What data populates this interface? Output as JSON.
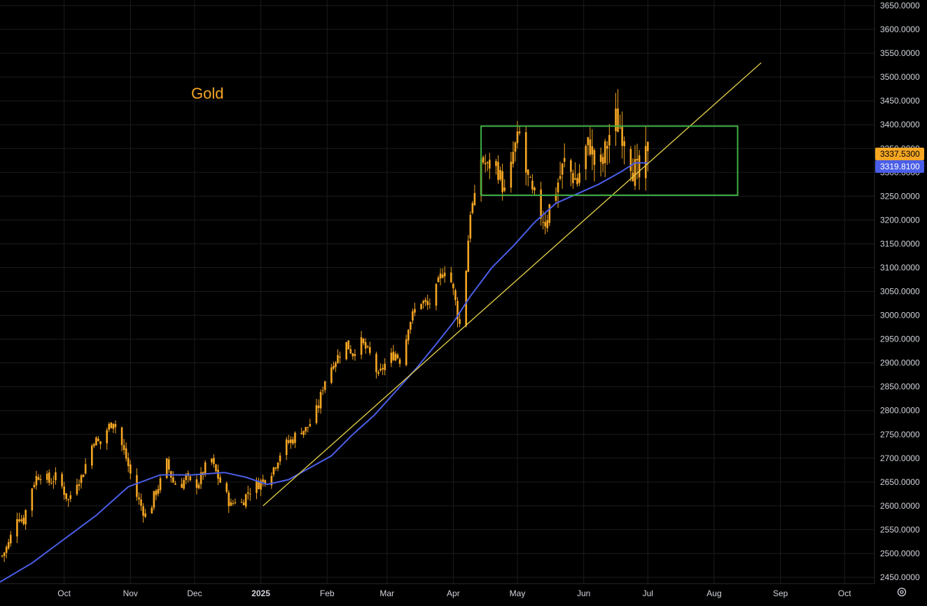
{
  "chart_data": {
    "type": "candlestick",
    "title": "Gold",
    "ylim": [
      2440,
      3660
    ],
    "y_ticks": [
      "3650.0000",
      "3600.0000",
      "3550.0000",
      "3500.0000",
      "3450.0000",
      "3400.0000",
      "3350.0000",
      "3300.0000",
      "3250.0000",
      "3200.0000",
      "3150.0000",
      "3100.0000",
      "3050.0000",
      "3000.0000",
      "2950.0000",
      "2900.0000",
      "2850.0000",
      "2800.0000",
      "2750.0000",
      "2700.0000",
      "2650.0000",
      "2600.0000",
      "2550.0000",
      "2500.0000",
      "2450.0000"
    ],
    "x_ticks": [
      {
        "label": "Oct",
        "day": 30,
        "bold": false
      },
      {
        "label": "Nov",
        "day": 61,
        "bold": false
      },
      {
        "label": "Dec",
        "day": 91,
        "bold": false
      },
      {
        "label": "2025",
        "day": 122,
        "bold": true
      },
      {
        "label": "Feb",
        "day": 153,
        "bold": false
      },
      {
        "label": "Mar",
        "day": 181,
        "bold": false
      },
      {
        "label": "Apr",
        "day": 212,
        "bold": false
      },
      {
        "label": "May",
        "day": 242,
        "bold": false
      },
      {
        "label": "Jun",
        "day": 273,
        "bold": false
      },
      {
        "label": "Jul",
        "day": 303,
        "bold": false
      },
      {
        "label": "Aug",
        "day": 334,
        "bold": false
      },
      {
        "label": "Sep",
        "day": 365,
        "bold": false
      },
      {
        "label": "Oct",
        "day": 395,
        "bold": false
      }
    ],
    "x_domain": [
      0,
      409
    ],
    "x_unit": "days since 2024-09-01",
    "price_keypoints": [
      [
        1,
        2495
      ],
      [
        4,
        2520
      ],
      [
        8,
        2580
      ],
      [
        11,
        2570
      ],
      [
        14,
        2630
      ],
      [
        17,
        2660
      ],
      [
        20,
        2670
      ],
      [
        23,
        2650
      ],
      [
        26,
        2660
      ],
      [
        29,
        2640
      ],
      [
        32,
        2610
      ],
      [
        35,
        2650
      ],
      [
        38,
        2660
      ],
      [
        41,
        2700
      ],
      [
        44,
        2740
      ],
      [
        47,
        2730
      ],
      [
        50,
        2760
      ],
      [
        53,
        2780
      ],
      [
        56,
        2740
      ],
      [
        59,
        2700
      ],
      [
        62,
        2650
      ],
      [
        64,
        2620
      ],
      [
        66,
        2600
      ],
      [
        69,
        2570
      ],
      [
        72,
        2620
      ],
      [
        75,
        2650
      ],
      [
        78,
        2690
      ],
      [
        81,
        2650
      ],
      [
        84,
        2640
      ],
      [
        87,
        2660
      ],
      [
        90,
        2640
      ],
      [
        93,
        2650
      ],
      [
        96,
        2680
      ],
      [
        98,
        2715
      ],
      [
        100,
        2680
      ],
      [
        103,
        2650
      ],
      [
        106,
        2620
      ],
      [
        108,
        2600
      ],
      [
        111,
        2620
      ],
      [
        113,
        2605
      ],
      [
        116,
        2630
      ],
      [
        119,
        2640
      ],
      [
        122,
        2650
      ],
      [
        125,
        2660
      ],
      [
        128,
        2680
      ],
      [
        131,
        2710
      ],
      [
        134,
        2730
      ],
      [
        137,
        2740
      ],
      [
        140,
        2760
      ],
      [
        143,
        2760
      ],
      [
        146,
        2780
      ],
      [
        149,
        2810
      ],
      [
        151,
        2850
      ],
      [
        153,
        2880
      ],
      [
        156,
        2900
      ],
      [
        159,
        2920
      ],
      [
        162,
        2940
      ],
      [
        165,
        2920
      ],
      [
        168,
        2950
      ],
      [
        171,
        2930
      ],
      [
        174,
        2910
      ],
      [
        177,
        2870
      ],
      [
        179,
        2890
      ],
      [
        182,
        2910
      ],
      [
        185,
        2920
      ],
      [
        188,
        2900
      ],
      [
        191,
        2980
      ],
      [
        194,
        3010
      ],
      [
        197,
        3030
      ],
      [
        200,
        3020
      ],
      [
        203,
        3040
      ],
      [
        206,
        3080
      ],
      [
        209,
        3110
      ],
      [
        212,
        3050
      ],
      [
        215,
        2980
      ],
      [
        218,
        3100
      ],
      [
        220,
        3220
      ],
      [
        222,
        3240
      ],
      [
        225,
        3330
      ],
      [
        228,
        3310
      ],
      [
        231,
        3330
      ],
      [
        234,
        3290
      ],
      [
        237,
        3240
      ],
      [
        240,
        3340
      ],
      [
        243,
        3380
      ],
      [
        246,
        3300
      ],
      [
        249,
        3250
      ],
      [
        252,
        3220
      ],
      [
        255,
        3200
      ],
      [
        258,
        3240
      ],
      [
        261,
        3280
      ],
      [
        264,
        3320
      ],
      [
        267,
        3300
      ],
      [
        270,
        3280
      ],
      [
        273,
        3340
      ],
      [
        276,
        3360
      ],
      [
        279,
        3300
      ],
      [
        282,
        3320
      ],
      [
        285,
        3380
      ],
      [
        288,
        3410
      ],
      [
        291,
        3390
      ],
      [
        294,
        3350
      ],
      [
        297,
        3300
      ],
      [
        300,
        3280
      ],
      [
        303,
        3337.53
      ]
    ],
    "sma_keypoints": [
      [
        0,
        2440
      ],
      [
        15,
        2480
      ],
      [
        30,
        2530
      ],
      [
        45,
        2580
      ],
      [
        60,
        2640
      ],
      [
        75,
        2665
      ],
      [
        90,
        2665
      ],
      [
        105,
        2670
      ],
      [
        115,
        2660
      ],
      [
        125,
        2645
      ],
      [
        135,
        2655
      ],
      [
        145,
        2680
      ],
      [
        155,
        2705
      ],
      [
        165,
        2750
      ],
      [
        175,
        2790
      ],
      [
        185,
        2840
      ],
      [
        195,
        2890
      ],
      [
        205,
        2945
      ],
      [
        212,
        2985
      ],
      [
        220,
        3040
      ],
      [
        230,
        3100
      ],
      [
        240,
        3145
      ],
      [
        250,
        3195
      ],
      [
        260,
        3235
      ],
      [
        270,
        3255
      ],
      [
        280,
        3275
      ],
      [
        290,
        3300
      ],
      [
        297,
        3320
      ],
      [
        303,
        3319.81
      ]
    ],
    "trendline": {
      "from": [
        123,
        2600
      ],
      "to": [
        356,
        3530
      ]
    },
    "range_box": {
      "x": [
        225,
        345
      ],
      "y": [
        3252,
        3397
      ]
    },
    "last_price": "3337.5300",
    "sma_value": "3319.8100",
    "colors": {
      "candle": "#f5a623",
      "sma": "#4a5ee8",
      "trendline": "#e8d24a",
      "box": "#3cb043",
      "grid": "#1c1c1c",
      "badge_price": "#f5a623",
      "badge_sma": "#4a5ee8"
    }
  },
  "toolbar": {
    "settings_icon": "settings-icon"
  }
}
